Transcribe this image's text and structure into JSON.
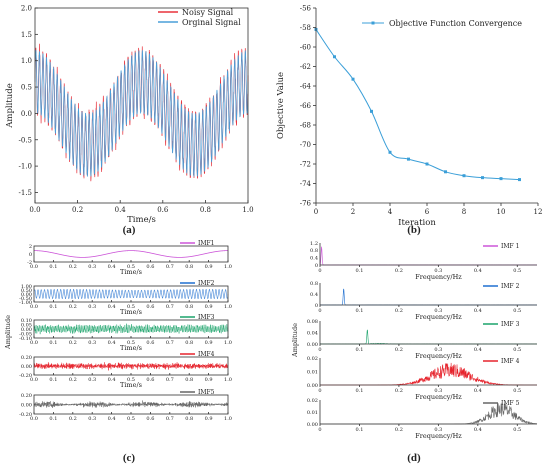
{
  "chart_data": [
    {
      "panel": "(a)",
      "type": "line",
      "xlabel": "Time/s",
      "ylabel": "Amplitude",
      "xlim": [
        0.0,
        1.0
      ],
      "ylim": [
        -1.7,
        2.0
      ],
      "xticks": [
        "0.0",
        "0.2",
        "0.4",
        "0.6",
        "0.8",
        "1.0"
      ],
      "yticks": [
        "-1.5",
        "-1.0",
        "-0.5",
        "0.0",
        "0.5",
        "1.0",
        "1.5",
        "2.0"
      ],
      "legend_position": "top-right",
      "series": [
        {
          "name": "Noisy Signal",
          "color": "#e8323c",
          "formula": "0.6*cos(4*pi*t) + 0.6*sin(2*pi*60*t) + noise"
        },
        {
          "name": "Orginal Signal",
          "color": "#4a9fd8",
          "formula": "0.6*cos(4*pi*t) + 0.6*sin(2*pi*60*t)"
        }
      ]
    },
    {
      "panel": "(b)",
      "type": "line",
      "xlabel": "Iteration",
      "ylabel": "Objective Value",
      "xlim": [
        0,
        12
      ],
      "ylim": [
        -76,
        -56
      ],
      "xticks": [
        "0",
        "2",
        "4",
        "6",
        "8",
        "10",
        "12"
      ],
      "yticks": [
        "-76",
        "-74",
        "-72",
        "-70",
        "-68",
        "-66",
        "-64",
        "-62",
        "-60",
        "-58",
        "-56"
      ],
      "legend_position": "top-right",
      "series": [
        {
          "name": "Objective Function Convergence",
          "color": "#3b9fd8",
          "x": [
            0,
            1,
            2,
            3,
            4,
            5,
            6,
            7,
            8,
            9,
            10,
            11
          ],
          "y": [
            -58.2,
            -61.0,
            -63.3,
            -66.6,
            -70.8,
            -71.5,
            -72.0,
            -72.8,
            -73.2,
            -73.4,
            -73.5,
            -73.6
          ]
        }
      ]
    },
    {
      "panel": "(c)",
      "type": "line",
      "xlabel": "Time/s",
      "ylabel": "Amplitude",
      "xlim": [
        0.0,
        1.0
      ],
      "xticks": [
        "0.0",
        "0.1",
        "0.2",
        "0.3",
        "0.4",
        "0.5",
        "0.6",
        "0.7",
        "0.8",
        "0.9",
        "1.0"
      ],
      "series": [
        {
          "name": "IMF1",
          "color": "#cc55d8",
          "yticks": [
            "2",
            "0",
            "-2"
          ],
          "ylim": [
            -2,
            2
          ]
        },
        {
          "name": "IMF2",
          "color": "#1f6fd0",
          "yticks": [
            "1.00",
            "0.50",
            "0.00",
            "-0.50",
            "-1.00"
          ],
          "ylim": [
            -1,
            1
          ]
        },
        {
          "name": "IMF3",
          "color": "#1aa36a",
          "yticks": [
            "0.10",
            "0.05",
            "0.00",
            "-0.05",
            "-0.10"
          ],
          "ylim": [
            -0.1,
            0.1
          ]
        },
        {
          "name": "IMF4",
          "color": "#e6232c",
          "yticks": [
            "0.20",
            "0.00",
            "-0.20"
          ],
          "ylim": [
            -0.2,
            0.2
          ]
        },
        {
          "name": "IMF5",
          "color": "#666666",
          "yticks": [
            "0.20",
            "0.00",
            "-0.20"
          ],
          "ylim": [
            -0.2,
            0.2
          ]
        }
      ]
    },
    {
      "panel": "(d)",
      "type": "line",
      "xlabel": "Frequency/Hz",
      "ylabel": "Amplitude",
      "xlim": [
        0.0,
        0.55
      ],
      "xticks": [
        "0",
        "0.1",
        "0.2",
        "0.3",
        "0.4",
        "0.5"
      ],
      "series": [
        {
          "name": "IMF 1",
          "color": "#cc55d8",
          "yticks": [
            "1.2",
            "0.8",
            "0.4",
            "0"
          ],
          "peak_freq": 0.004,
          "peak": 1.0,
          "ylim": [
            0,
            1.2
          ]
        },
        {
          "name": "IMF 2",
          "color": "#1f6fd0",
          "yticks": [
            "0.8",
            "0.4",
            "0"
          ],
          "peak_freq": 0.06,
          "peak": 0.6,
          "ylim": [
            0,
            0.8
          ]
        },
        {
          "name": "IMF 3",
          "color": "#1aa36a",
          "yticks": [
            "0.08",
            "0.04",
            "0.00"
          ],
          "peak_freq": 0.12,
          "peak": 0.05,
          "ylim": [
            0,
            0.08
          ]
        },
        {
          "name": "IMF 4",
          "color": "#e6232c",
          "yticks": [
            "0.02",
            "0.01",
            "0.00"
          ],
          "peak_freq": 0.33,
          "peak": 0.015,
          "ylim": [
            0,
            0.02
          ]
        },
        {
          "name": "IMF 5",
          "color": "#666666",
          "yticks": [
            "0.02",
            "0.01",
            "0.00"
          ],
          "peak_freq": 0.46,
          "peak": 0.017,
          "ylim": [
            0,
            0.02
          ]
        }
      ]
    }
  ],
  "captions": {
    "a": "(a)",
    "b": "(b)",
    "c": "(c)",
    "d": "(d)"
  }
}
